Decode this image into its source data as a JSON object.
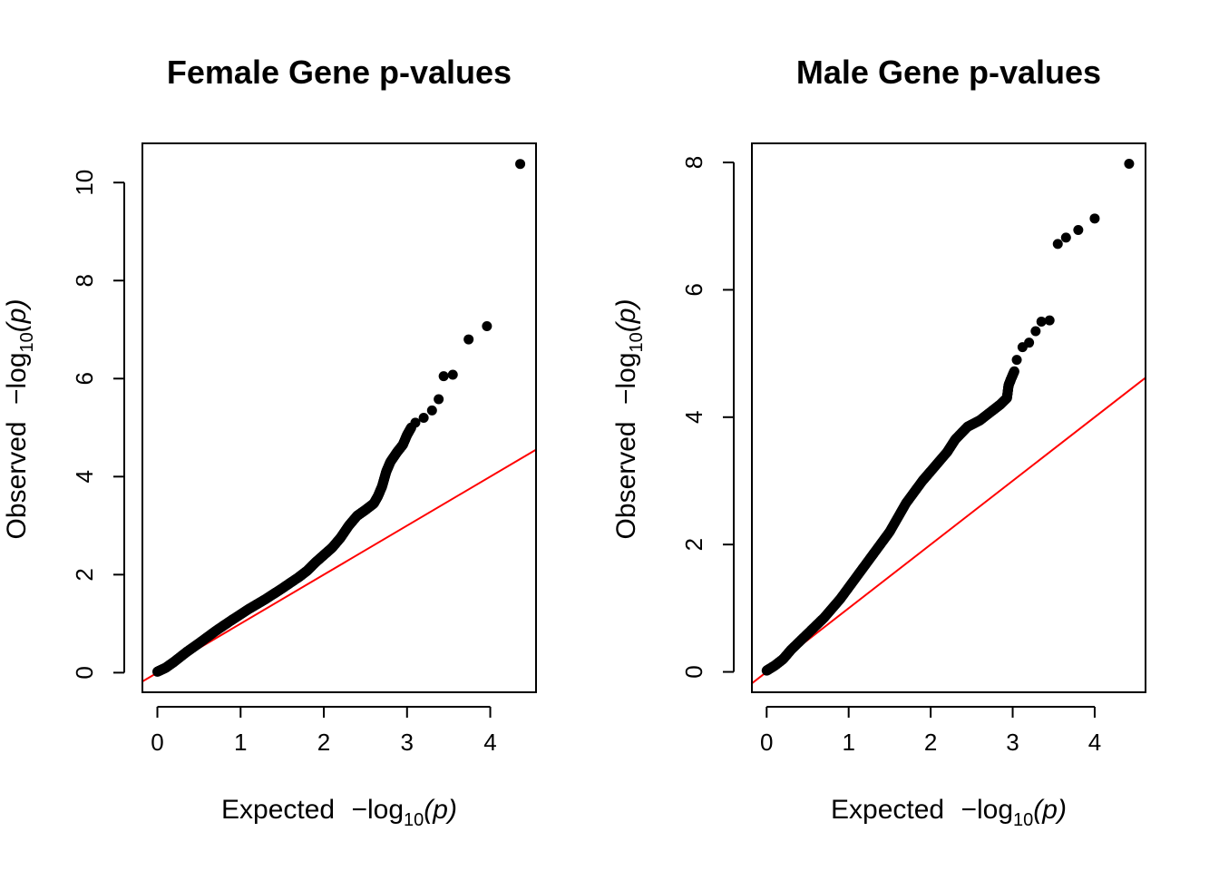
{
  "chart_data": [
    {
      "type": "scatter",
      "title": "Female Gene p-values",
      "xlabel": {
        "prefix": "Expected",
        "minus": "−",
        "log": "log",
        "sub": "10",
        "var": "(p)"
      },
      "ylabel": {
        "prefix": "Observed",
        "minus": "−",
        "log": "log",
        "sub": "10",
        "var": "(p)"
      },
      "xlim": [
        -0.18,
        4.55
      ],
      "ylim": [
        -0.4,
        10.8
      ],
      "xticks": [
        0,
        1,
        2,
        3,
        4
      ],
      "yticks": [
        0,
        2,
        4,
        6,
        8,
        10
      ],
      "reference_line": {
        "slope": 1,
        "intercept": 0,
        "color": "#ff0000"
      },
      "point_color": "#000000",
      "curve": [
        [
          0,
          0.02
        ],
        [
          0.1,
          0.1
        ],
        [
          0.2,
          0.22
        ],
        [
          0.35,
          0.42
        ],
        [
          0.5,
          0.6
        ],
        [
          0.7,
          0.85
        ],
        [
          0.9,
          1.08
        ],
        [
          1.1,
          1.3
        ],
        [
          1.3,
          1.5
        ],
        [
          1.5,
          1.72
        ],
        [
          1.7,
          1.95
        ],
        [
          1.8,
          2.08
        ],
        [
          1.9,
          2.25
        ],
        [
          2.0,
          2.4
        ],
        [
          2.1,
          2.55
        ],
        [
          2.2,
          2.75
        ],
        [
          2.3,
          3.0
        ],
        [
          2.4,
          3.2
        ],
        [
          2.5,
          3.32
        ],
        [
          2.6,
          3.45
        ],
        [
          2.65,
          3.6
        ],
        [
          2.7,
          3.8
        ],
        [
          2.75,
          4.1
        ],
        [
          2.8,
          4.3
        ],
        [
          2.88,
          4.5
        ],
        [
          2.95,
          4.65
        ],
        [
          3.0,
          4.85
        ],
        [
          3.05,
          5.0
        ]
      ],
      "outliers": [
        [
          3.1,
          5.1
        ],
        [
          3.2,
          5.2
        ],
        [
          3.3,
          5.35
        ],
        [
          3.38,
          5.58
        ],
        [
          3.44,
          6.05
        ],
        [
          3.55,
          6.08
        ],
        [
          3.74,
          6.8
        ],
        [
          3.96,
          7.07
        ],
        [
          4.36,
          10.38
        ]
      ]
    },
    {
      "type": "scatter",
      "title": "Male Gene p-values",
      "xlabel": {
        "prefix": "Expected",
        "minus": "−",
        "log": "log",
        "sub": "10",
        "var": "(p)"
      },
      "ylabel": {
        "prefix": "Observed",
        "minus": "−",
        "log": "log",
        "sub": "10",
        "var": "(p)"
      },
      "xlim": [
        -0.18,
        4.62
      ],
      "ylim": [
        -0.32,
        8.3
      ],
      "xticks": [
        0,
        1,
        2,
        3,
        4
      ],
      "yticks": [
        0,
        2,
        4,
        6,
        8
      ],
      "reference_line": {
        "slope": 1,
        "intercept": 0,
        "color": "#ff0000"
      },
      "point_color": "#000000",
      "curve": [
        [
          0,
          0.02
        ],
        [
          0.1,
          0.1
        ],
        [
          0.2,
          0.2
        ],
        [
          0.3,
          0.35
        ],
        [
          0.5,
          0.6
        ],
        [
          0.7,
          0.85
        ],
        [
          0.9,
          1.15
        ],
        [
          1.1,
          1.5
        ],
        [
          1.3,
          1.85
        ],
        [
          1.5,
          2.2
        ],
        [
          1.7,
          2.65
        ],
        [
          1.9,
          3.0
        ],
        [
          2.0,
          3.15
        ],
        [
          2.2,
          3.45
        ],
        [
          2.3,
          3.65
        ],
        [
          2.45,
          3.85
        ],
        [
          2.6,
          3.95
        ],
        [
          2.75,
          4.1
        ],
        [
          2.85,
          4.2
        ],
        [
          2.93,
          4.3
        ],
        [
          2.95,
          4.5
        ],
        [
          2.98,
          4.6
        ],
        [
          3.02,
          4.72
        ]
      ],
      "outliers": [
        [
          3.05,
          4.9
        ],
        [
          3.12,
          5.1
        ],
        [
          3.2,
          5.17
        ],
        [
          3.28,
          5.35
        ],
        [
          3.35,
          5.5
        ],
        [
          3.45,
          5.52
        ],
        [
          3.55,
          6.72
        ],
        [
          3.65,
          6.82
        ],
        [
          3.8,
          6.94
        ],
        [
          4.0,
          7.12
        ],
        [
          4.42,
          7.98
        ]
      ]
    }
  ]
}
